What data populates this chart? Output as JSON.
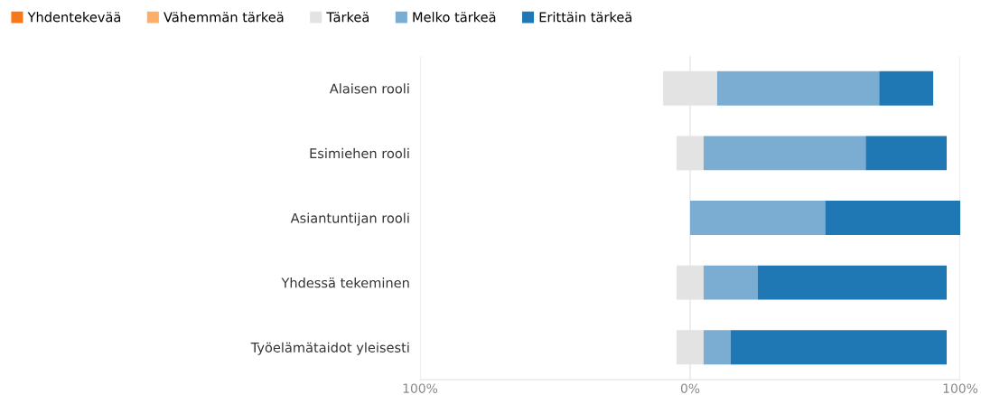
{
  "chart_data": {
    "type": "bar",
    "orientation": "horizontal",
    "stacked": true,
    "categories": [
      "Alaisen rooli",
      "Esimiehen rooli",
      "Asiantuntijan rooli",
      "Yhdessä tekeminen",
      "Työelämätaidot yleisesti"
    ],
    "series": [
      {
        "name": "Yhdentekevää",
        "color": "#f8771a",
        "values": [
          0,
          0,
          0,
          0,
          0
        ]
      },
      {
        "name": "Vähemmän tärkeä",
        "color": "#fdae6b",
        "values": [
          0,
          0,
          0,
          0,
          0
        ]
      },
      {
        "color": "#e3e3e3",
        "values": [
          -10,
          -5,
          0,
          -5,
          -5
        ]
      },
      {
        "name": "Tärkeä",
        "color": "#e3e3e3",
        "values": [
          10,
          5,
          0,
          5,
          5
        ]
      },
      {
        "name": "Melko tärkeä",
        "color": "#7badd3",
        "values": [
          60,
          60,
          50,
          20,
          10
        ]
      },
      {
        "name": "Erittäin tärkeä",
        "color": "#1f77b4",
        "values": [
          20,
          30,
          50,
          70,
          80
        ]
      }
    ],
    "xlim": [
      -100,
      100
    ],
    "xticks": [
      {
        "value": -100,
        "label": "100%"
      },
      {
        "value": 0,
        "label": "0%"
      },
      {
        "value": 100,
        "label": "100%"
      }
    ],
    "grid": "x",
    "legend": "top left"
  }
}
